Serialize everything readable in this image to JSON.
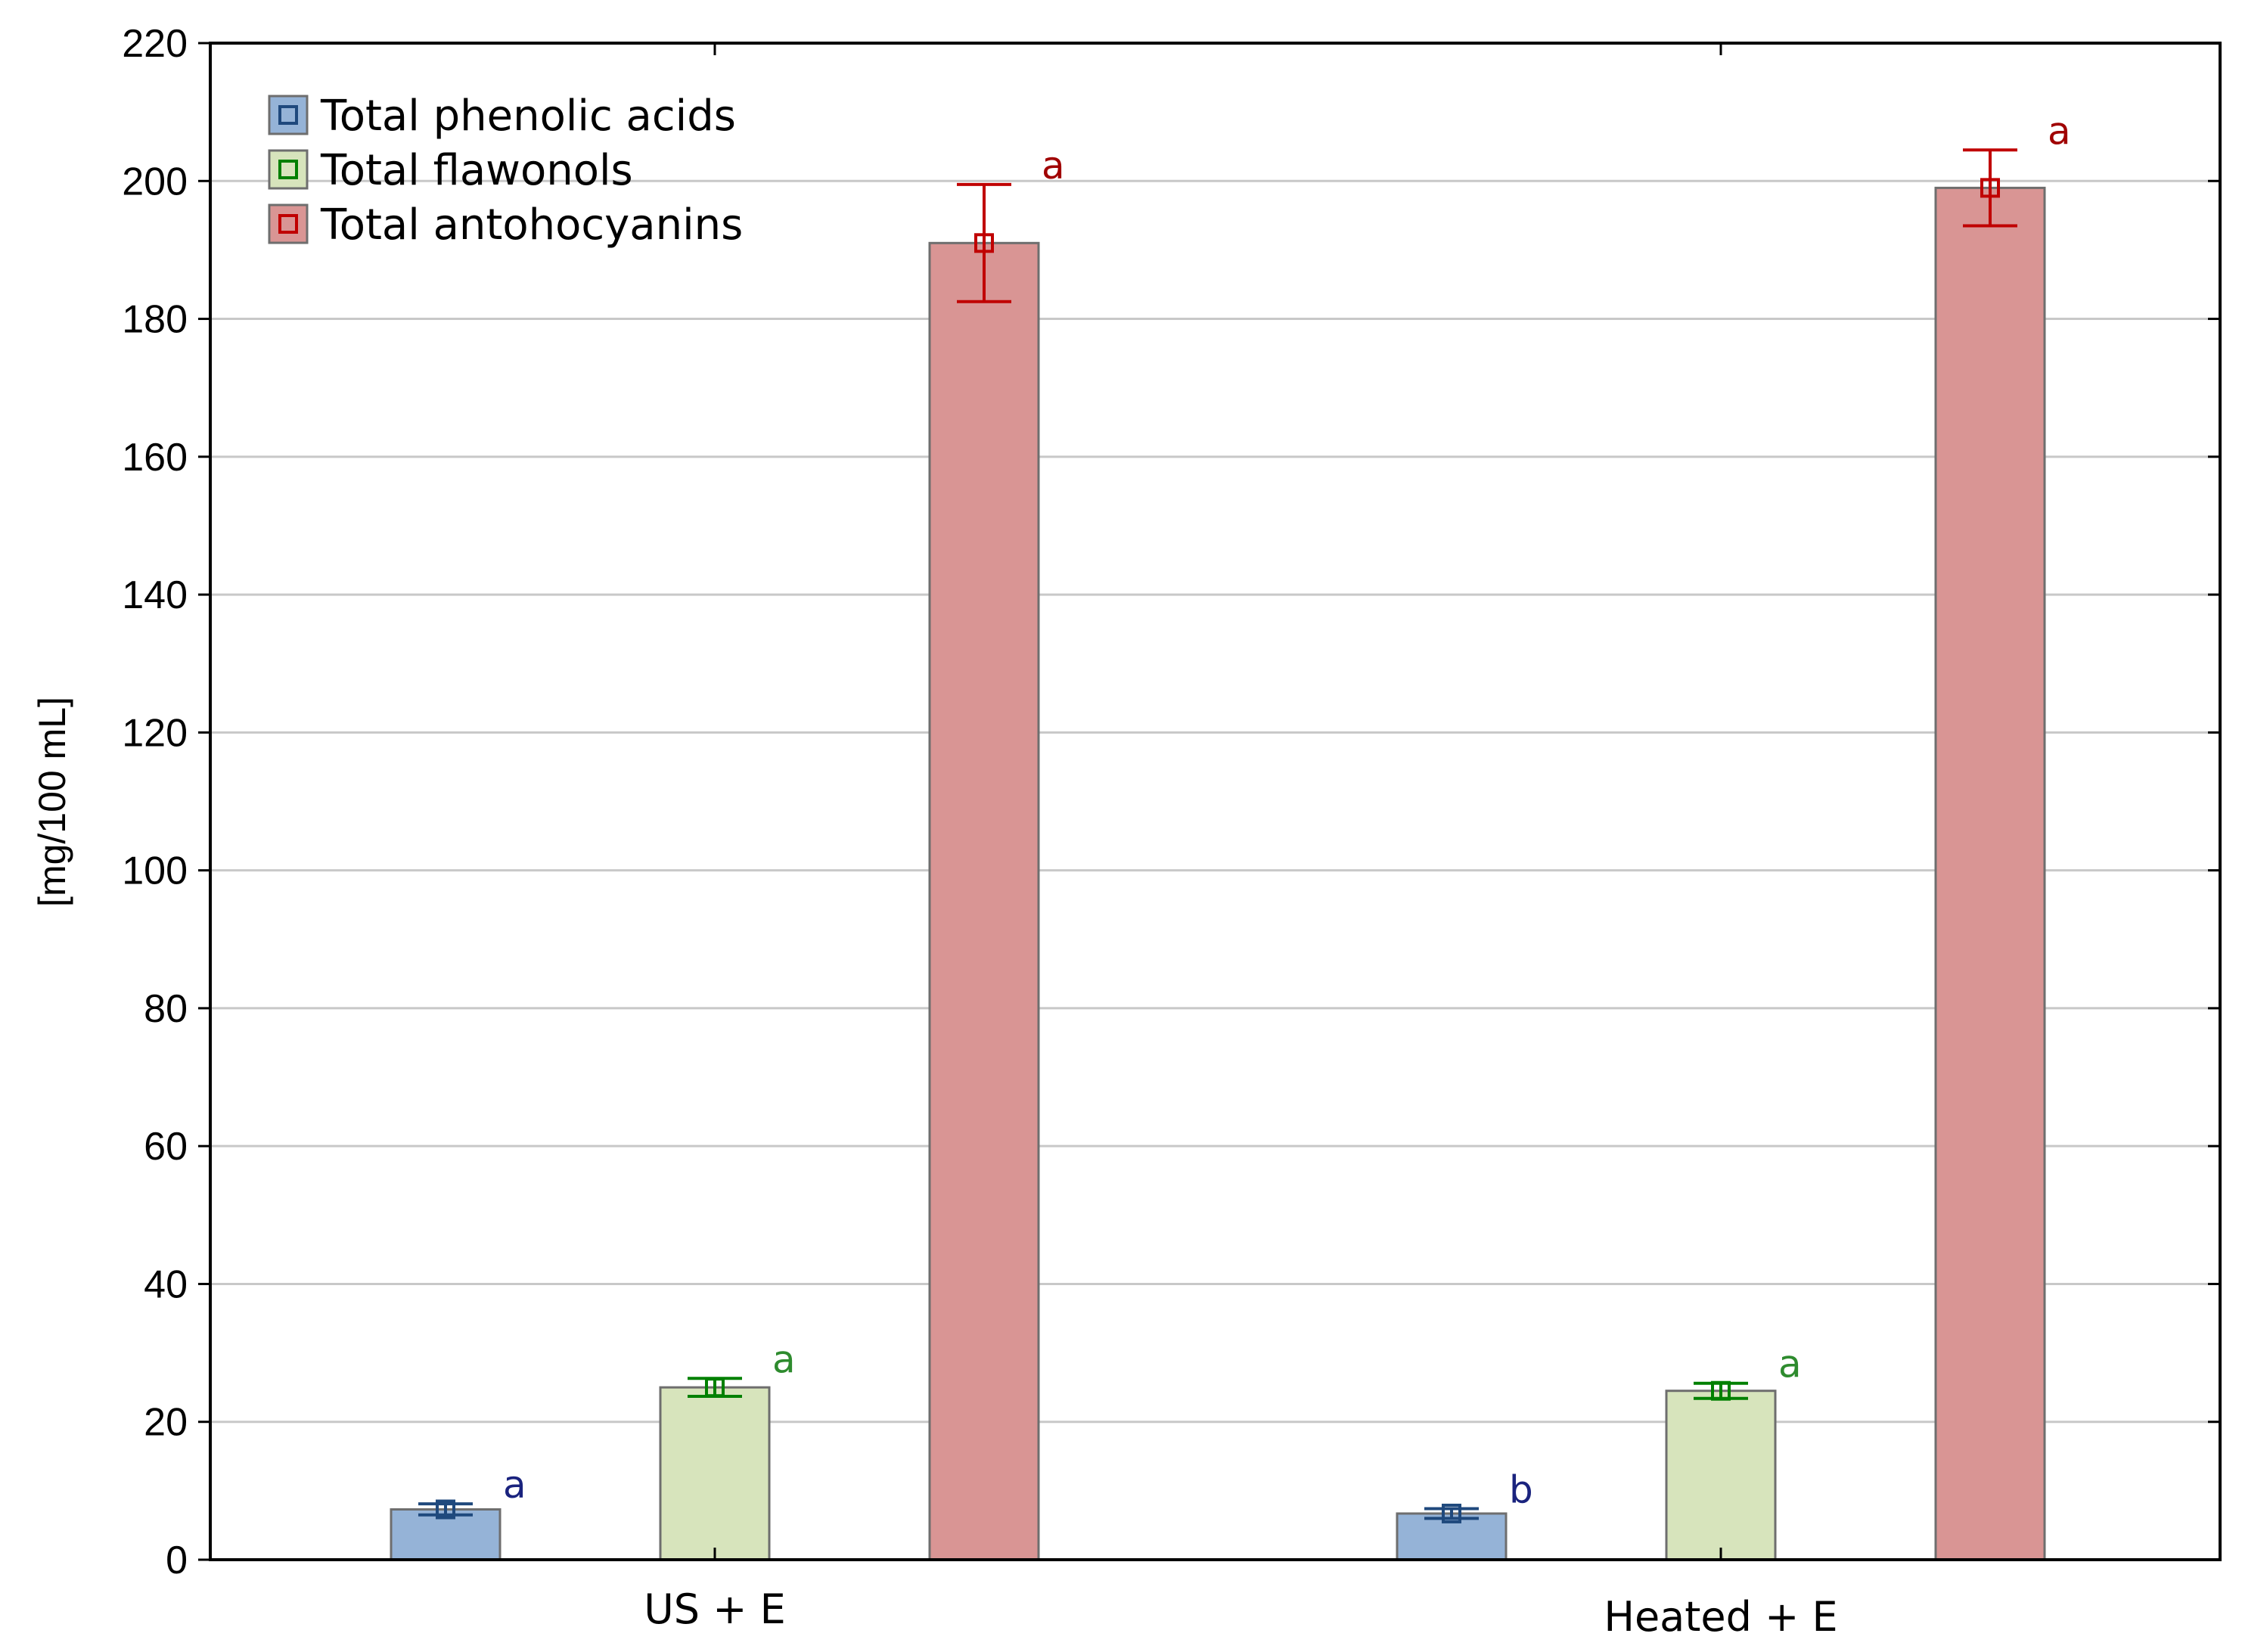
{
  "chart_data": {
    "type": "bar",
    "title": "",
    "xlabel": "",
    "ylabel": "[mg/100 mL]",
    "ylim": [
      0,
      220
    ],
    "yticks": [
      0,
      20,
      40,
      60,
      80,
      100,
      120,
      140,
      160,
      180,
      200,
      220
    ],
    "grid": true,
    "legend_position": "top-left",
    "categories": [
      "US + E",
      "Heated + E"
    ],
    "series": [
      {
        "name": "Total phenolic acids",
        "fill": "#95b3d7",
        "stroke": "#1f497d",
        "values": [
          7.3,
          6.7
        ],
        "errors": [
          0.8,
          0.7
        ],
        "letters": [
          "a",
          "b"
        ],
        "letter_color": "#1a237e"
      },
      {
        "name": "Total flawonols",
        "fill": "#d7e4bc",
        "stroke": "#008000",
        "values": [
          25.0,
          24.5
        ],
        "errors": [
          1.3,
          1.1
        ],
        "letters": [
          "a",
          "a"
        ],
        "letter_color": "#2e8b2e"
      },
      {
        "name": "Total antohocyanins",
        "fill": "#d99594",
        "stroke": "#c00000",
        "values": [
          191.0,
          199.0
        ],
        "errors": [
          8.5,
          5.5
        ],
        "letters": [
          "a",
          "a"
        ],
        "letter_color": "#a00000"
      }
    ]
  }
}
